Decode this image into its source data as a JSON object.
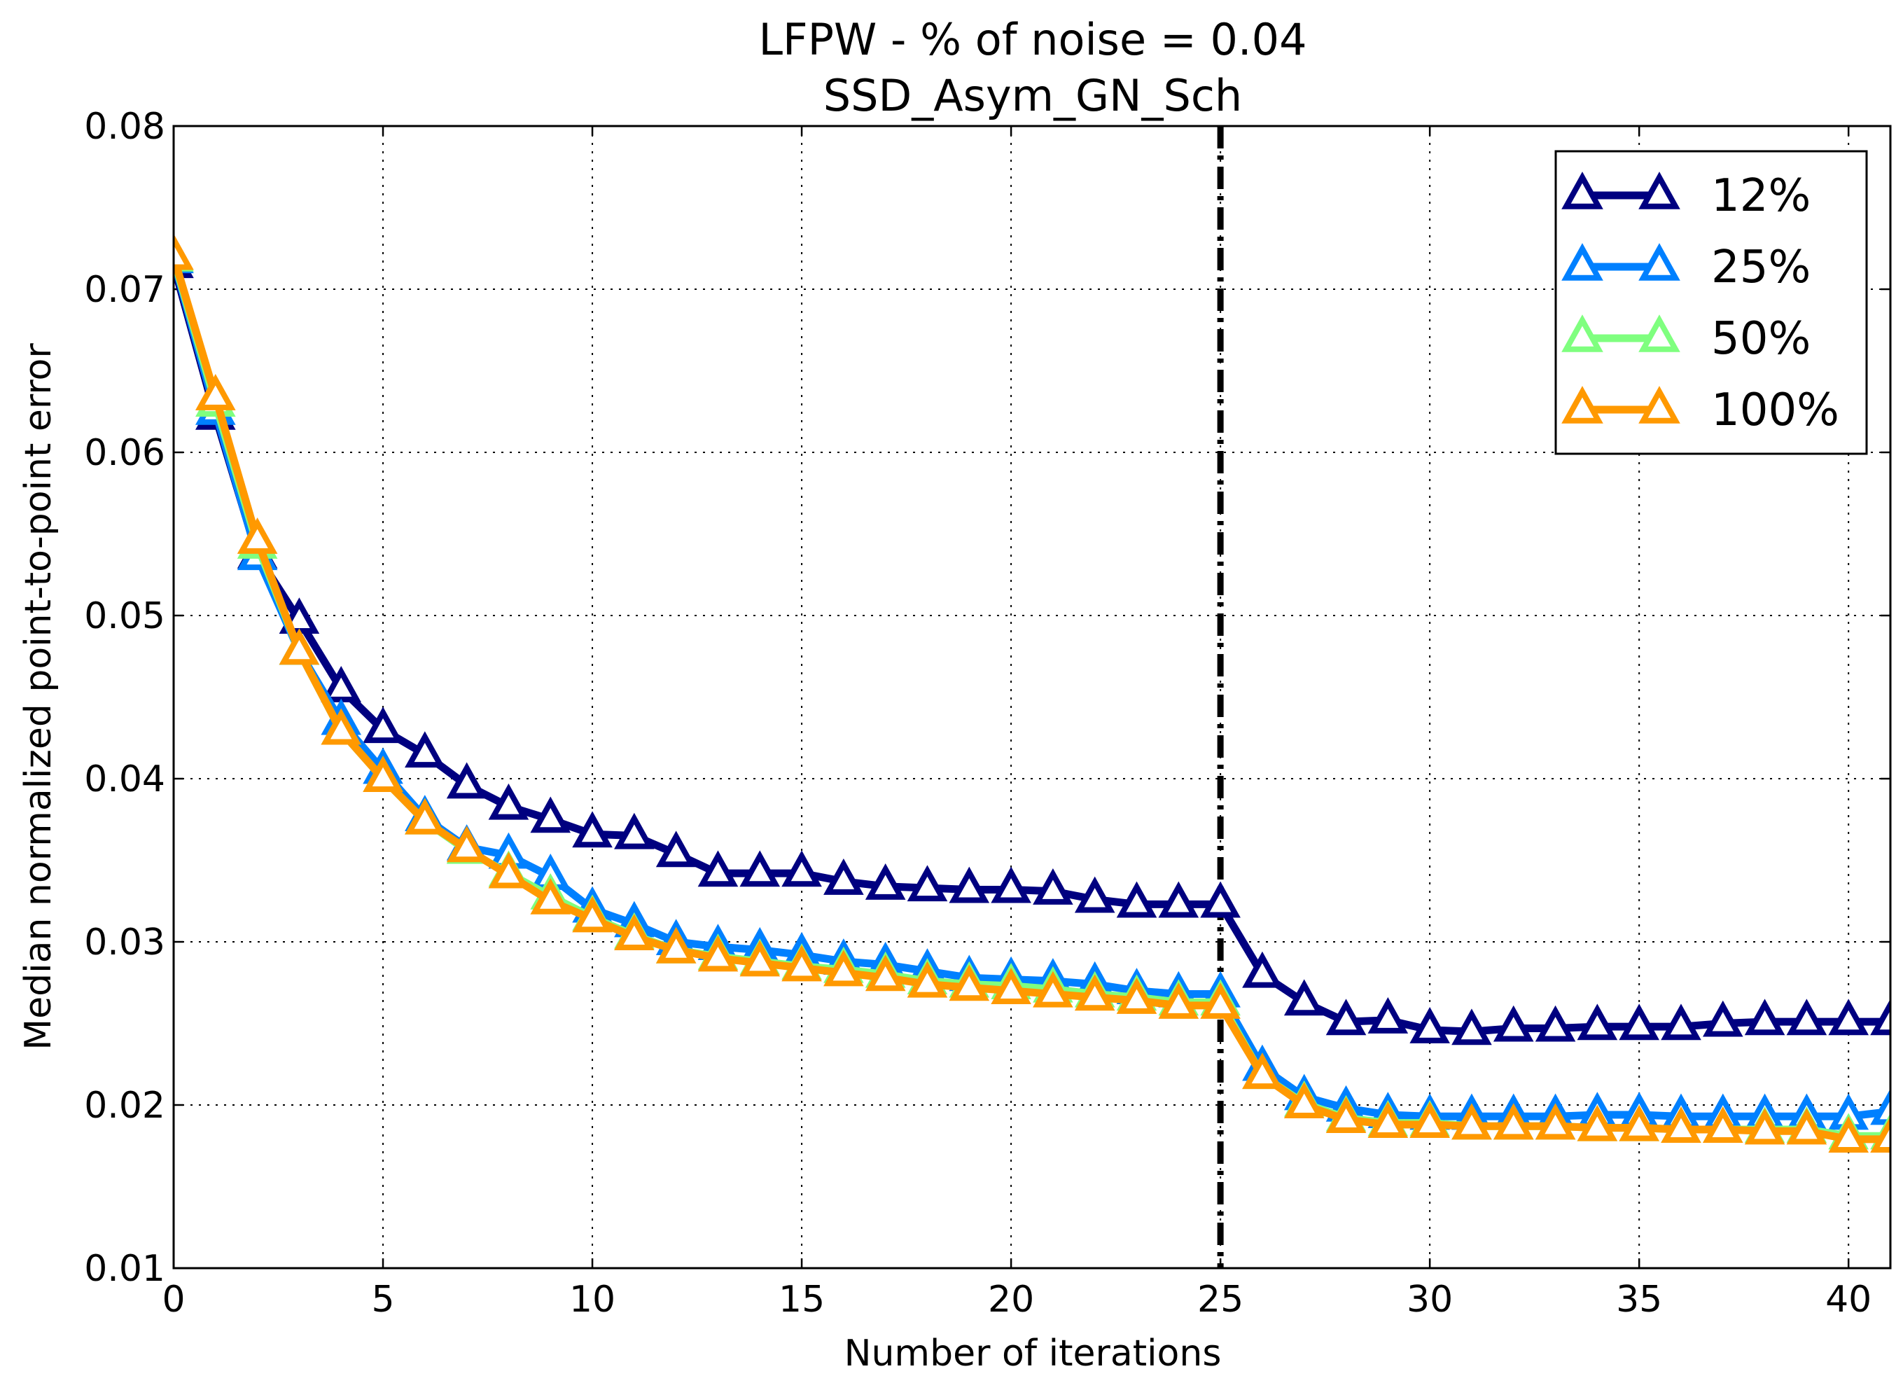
{
  "chart_data": {
    "type": "line",
    "title": "LFPW - % of noise = 0.04",
    "subtitle": "SSD_Asym_GN_Sch",
    "xlabel": "Number of iterations",
    "ylabel": "Median normalized point-to-point error",
    "xlim": [
      0,
      41
    ],
    "ylim": [
      0.01,
      0.08
    ],
    "xticks": [
      0,
      5,
      10,
      15,
      20,
      25,
      30,
      35,
      40
    ],
    "yticks": [
      0.01,
      0.02,
      0.03,
      0.04,
      0.05,
      0.06,
      0.07,
      0.08
    ],
    "ytick_labels": [
      "0.01",
      "0.02",
      "0.03",
      "0.04",
      "0.05",
      "0.06",
      "0.07",
      "0.08"
    ],
    "grid": true,
    "legend_position": "top-right",
    "marker": "open-triangle",
    "vertical_line": {
      "x": 25,
      "style": "dash-dot",
      "color": "#000000"
    },
    "x": [
      0,
      1,
      2,
      3,
      4,
      5,
      6,
      7,
      8,
      9,
      10,
      11,
      12,
      13,
      14,
      15,
      16,
      17,
      18,
      19,
      20,
      21,
      22,
      23,
      24,
      25,
      26,
      27,
      28,
      29,
      30,
      31,
      32,
      33,
      34,
      35,
      36,
      37,
      38,
      39,
      40,
      41
    ],
    "series": [
      {
        "name": "12%",
        "color": "#000080",
        "values": [
          0.0715,
          0.0622,
          0.0537,
          0.0497,
          0.0455,
          0.043,
          0.0415,
          0.0396,
          0.0383,
          0.0375,
          0.0366,
          0.0365,
          0.0354,
          0.0342,
          0.0342,
          0.0342,
          0.0337,
          0.0334,
          0.0333,
          0.0332,
          0.0332,
          0.0331,
          0.0326,
          0.0323,
          0.0323,
          0.0323,
          0.028,
          0.0263,
          0.0251,
          0.0252,
          0.0246,
          0.0245,
          0.0247,
          0.0247,
          0.0248,
          0.0248,
          0.0248,
          0.025,
          0.0251,
          0.0251,
          0.0251,
          0.0251
        ]
      },
      {
        "name": "25%",
        "color": "#0080ff",
        "values": [
          0.0718,
          0.0625,
          0.0536,
          0.0478,
          0.0435,
          0.0405,
          0.0376,
          0.0358,
          0.0353,
          0.034,
          0.032,
          0.0311,
          0.03,
          0.0297,
          0.0295,
          0.0292,
          0.0288,
          0.0286,
          0.0282,
          0.0278,
          0.0277,
          0.0276,
          0.0274,
          0.027,
          0.0268,
          0.0268,
          0.0223,
          0.0205,
          0.0198,
          0.0194,
          0.0193,
          0.0193,
          0.0193,
          0.0193,
          0.0194,
          0.0194,
          0.0193,
          0.0193,
          0.0193,
          0.0193,
          0.0193,
          0.0196
        ]
      },
      {
        "name": "50%",
        "color": "#7fff7f",
        "values": [
          0.0719,
          0.063,
          0.0543,
          0.0478,
          0.0429,
          0.04,
          0.0374,
          0.0356,
          0.0342,
          0.0328,
          0.0315,
          0.0304,
          0.0295,
          0.0291,
          0.0288,
          0.0285,
          0.0283,
          0.028,
          0.0276,
          0.0274,
          0.0273,
          0.0271,
          0.0268,
          0.0266,
          0.0263,
          0.0263,
          0.0218,
          0.0201,
          0.0192,
          0.0189,
          0.0189,
          0.0187,
          0.0187,
          0.0187,
          0.0186,
          0.0186,
          0.0185,
          0.0185,
          0.0185,
          0.0185,
          0.0181,
          0.0181
        ]
      },
      {
        "name": "100%",
        "color": "#ff9900",
        "values": [
          0.072,
          0.0634,
          0.0546,
          0.0478,
          0.0429,
          0.04,
          0.0374,
          0.0357,
          0.0341,
          0.0325,
          0.0314,
          0.0303,
          0.0295,
          0.029,
          0.0287,
          0.0284,
          0.0281,
          0.0278,
          0.0274,
          0.0272,
          0.027,
          0.0268,
          0.0266,
          0.0264,
          0.0261,
          0.0261,
          0.0218,
          0.02,
          0.0191,
          0.0188,
          0.0188,
          0.0187,
          0.0187,
          0.0187,
          0.0186,
          0.0186,
          0.0185,
          0.0185,
          0.0184,
          0.0184,
          0.0179,
          0.0179
        ]
      }
    ]
  }
}
